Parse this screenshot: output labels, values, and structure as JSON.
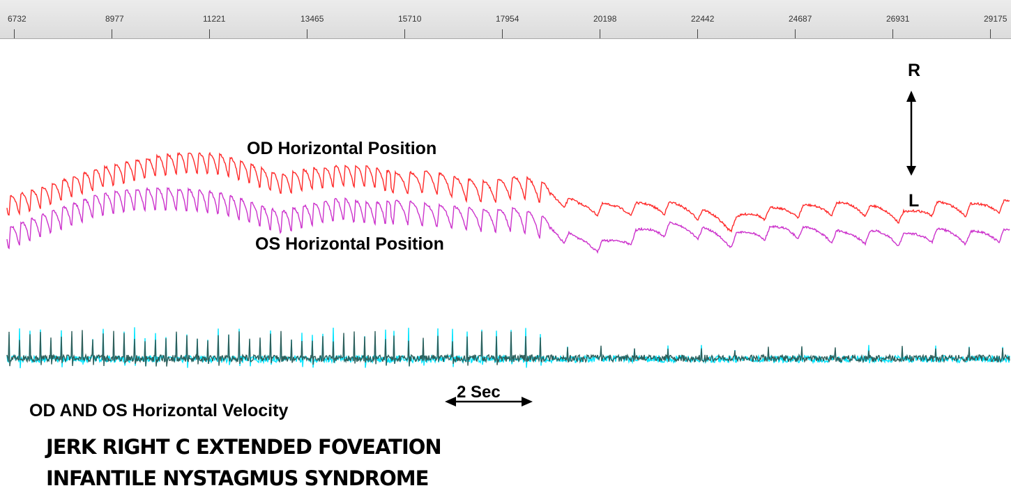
{
  "ruler": {
    "ticks": [
      "6732",
      "8977",
      "11221",
      "13465",
      "15710",
      "17954",
      "20198",
      "22442",
      "24687",
      "26931",
      "29175"
    ]
  },
  "labels": {
    "od_position": "OD Horizontal Position",
    "os_position": "OS Horizontal Position",
    "velocity": "OD AND OS Horizontal  Velocity",
    "time_scale": "2 Sec",
    "direction_right": "R",
    "direction_left": "L"
  },
  "caption": {
    "line1": "JERK RIGHT C EXTENDED FOVEATION",
    "line2": "INFANTILE NYSTAGMUS SYNDROME"
  },
  "chart_data": {
    "type": "line",
    "x_range": [
      6000,
      29500
    ],
    "time_scale_seconds": 2,
    "series": [
      {
        "color": "#ff2a2a",
        "description": "OD horizontal position (jerk waveform)",
        "x": [
          6100,
          6800,
          7500,
          8200,
          8900,
          9600,
          10300,
          11000,
          11700,
          12400,
          13100,
          13800,
          14500,
          15200,
          15900,
          16600,
          17300,
          18000,
          18700,
          19400,
          20100,
          20800,
          21500,
          22200,
          22900,
          23600,
          24300,
          25000,
          25700,
          26400,
          27100,
          27800,
          28500,
          29300
        ],
        "y": [
          0.2,
          0.9,
          1.9,
          2.7,
          3.3,
          3.8,
          4.1,
          3.9,
          3.1,
          2.1,
          2.6,
          2.9,
          2.8,
          2.2,
          2.4,
          1.8,
          1.4,
          2.0,
          1.2,
          0.1,
          -0.1,
          0.0,
          0.1,
          -0.4,
          -1.5,
          -0.5,
          -0.3,
          -0.1,
          0.1,
          -0.3,
          -0.8,
          0.1,
          -0.1,
          0.2
        ]
      },
      {
        "color": "#cc33cc",
        "description": "OS horizontal position (jerk waveform)",
        "x": [
          6100,
          6800,
          7500,
          8200,
          8900,
          9600,
          10300,
          11000,
          11700,
          12400,
          13100,
          13800,
          14500,
          15200,
          15900,
          16600,
          17300,
          18000,
          18700,
          19400,
          20100,
          20800,
          21500,
          22200,
          22900,
          23600,
          24300,
          25000,
          25700,
          26400,
          27100,
          27800,
          28500,
          29300
        ],
        "y": [
          -2.6,
          -1.6,
          -0.6,
          0.3,
          0.7,
          0.8,
          0.7,
          0.4,
          -0.4,
          -1.3,
          -0.6,
          -0.1,
          -0.5,
          -0.3,
          -0.6,
          -0.9,
          -1.1,
          -1.0,
          -1.9,
          -3.1,
          -3.4,
          -2.4,
          -1.8,
          -2.1,
          -2.9,
          -2.3,
          -2.0,
          -2.3,
          -2.6,
          -2.5,
          -2.8,
          -2.3,
          -2.6,
          -2.4
        ]
      },
      {
        "color": "#00e5ff",
        "description": "OS horizontal velocity",
        "x": [
          6100,
          29300
        ],
        "y": [
          -5.0,
          -5.0
        ]
      },
      {
        "color": "#2e5e5a",
        "description": "OD horizontal velocity",
        "x": [
          6100,
          29300
        ],
        "y": [
          -5.0,
          -5.0
        ]
      }
    ]
  }
}
